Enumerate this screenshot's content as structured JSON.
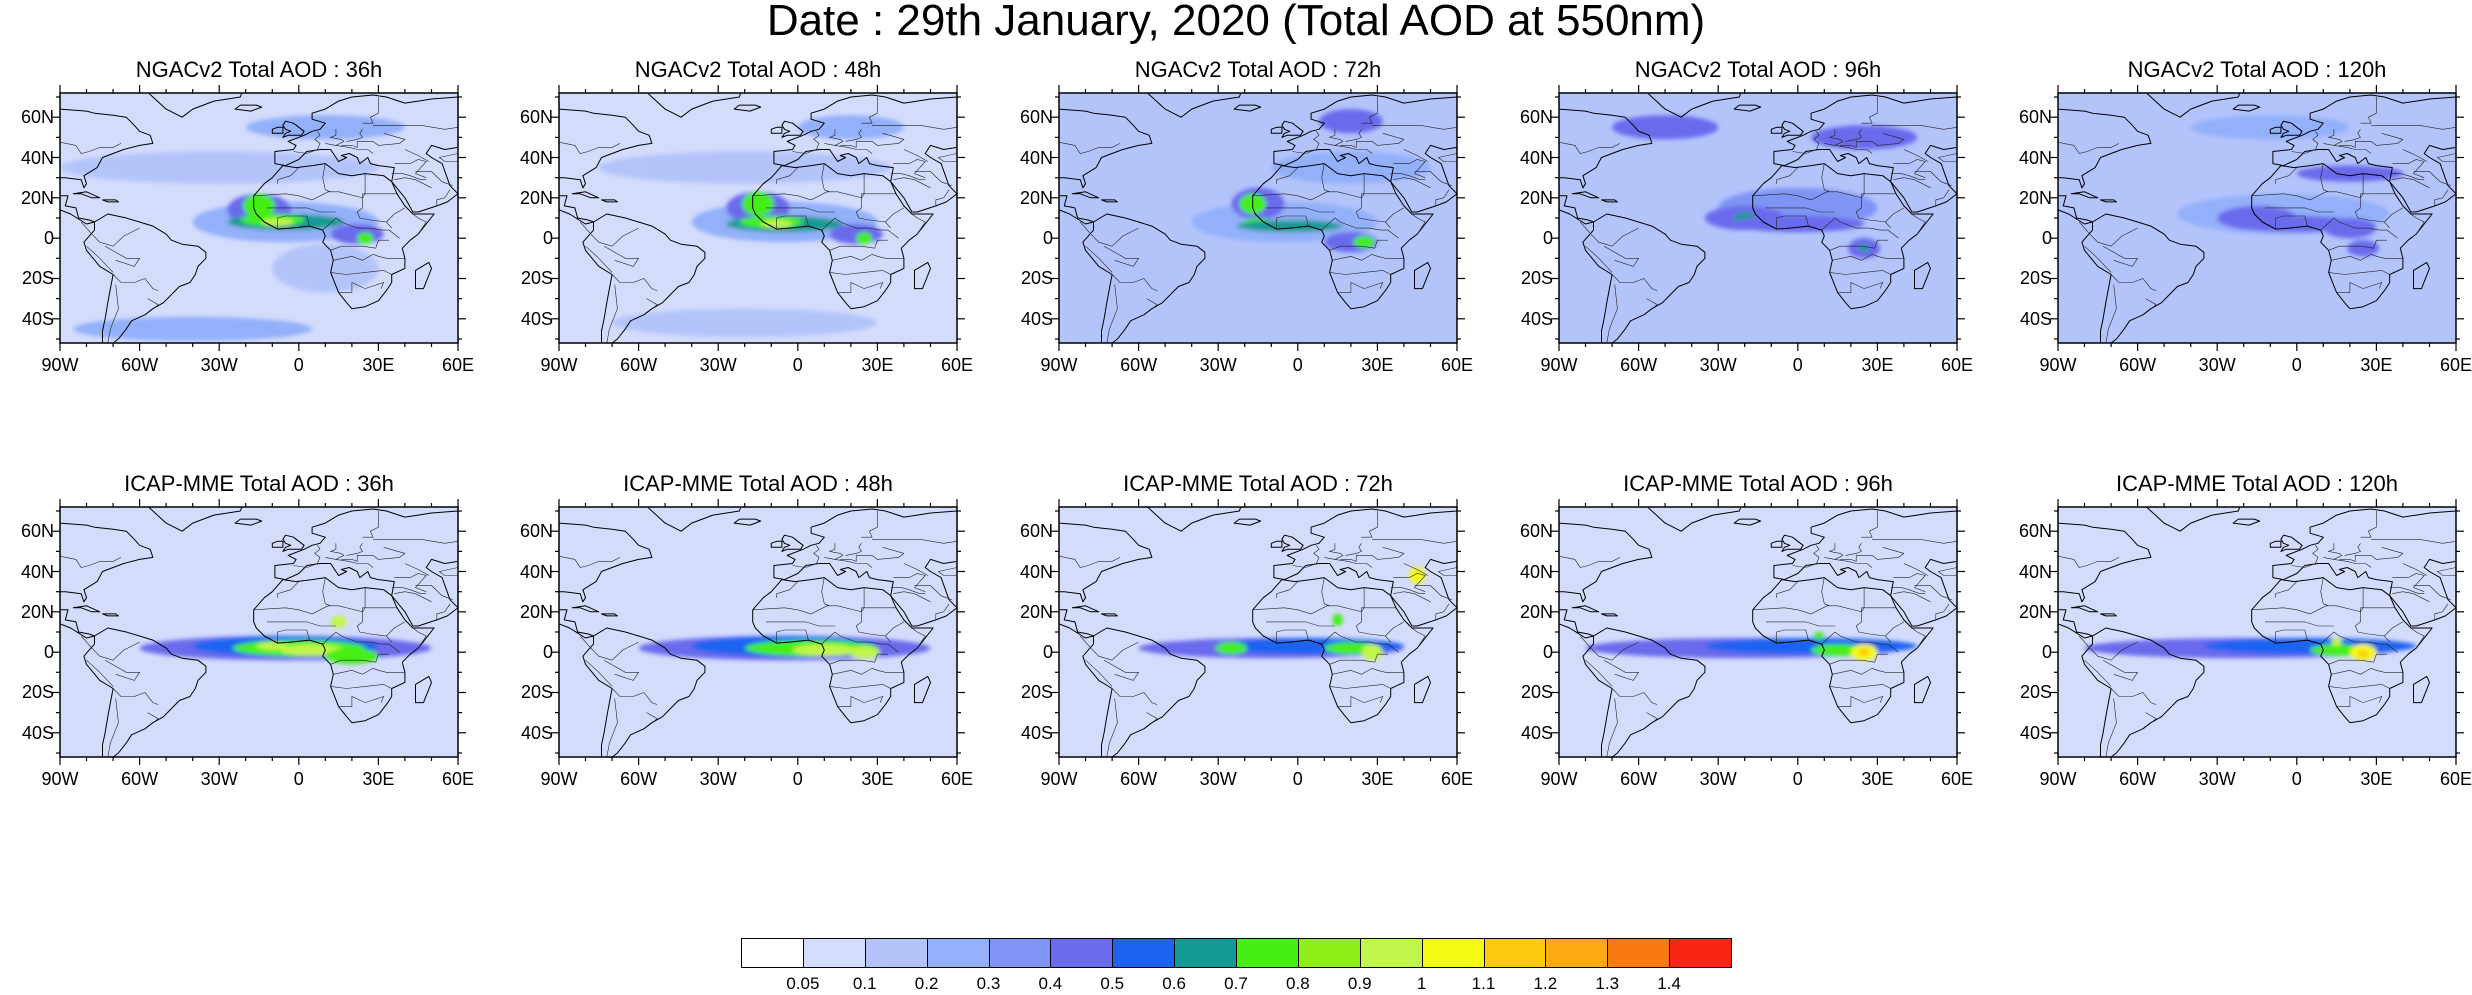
{
  "title": "Date : 29th January, 2020 (Total AOD at 550nm)",
  "axis_ticks": {
    "lat": [
      "60N",
      "40N",
      "20N",
      "0",
      "20S",
      "40S"
    ],
    "lon": [
      "90W",
      "60W",
      "30W",
      "0",
      "30E",
      "60E"
    ]
  },
  "panels": [
    {
      "model": "NGACv2",
      "title": "NGACv2 Total AOD : 36h"
    },
    {
      "model": "NGACv2",
      "title": "NGACv2 Total AOD : 48h"
    },
    {
      "model": "NGACv2",
      "title": "NGACv2 Total AOD : 72h"
    },
    {
      "model": "NGACv2",
      "title": "NGACv2 Total AOD : 96h"
    },
    {
      "model": "NGACv2",
      "title": "NGACv2 Total AOD : 120h"
    },
    {
      "model": "ICAP-MME",
      "title": "ICAP-MME Total AOD : 36h"
    },
    {
      "model": "ICAP-MME",
      "title": "ICAP-MME Total AOD : 48h"
    },
    {
      "model": "ICAP-MME",
      "title": "ICAP-MME Total AOD : 72h"
    },
    {
      "model": "ICAP-MME",
      "title": "ICAP-MME Total AOD : 96h"
    },
    {
      "model": "ICAP-MME",
      "title": "ICAP-MME Total AOD : 120h"
    }
  ],
  "colorbar": {
    "labels": [
      "0.05",
      "0.1",
      "0.2",
      "0.3",
      "0.4",
      "0.5",
      "0.6",
      "0.7",
      "0.8",
      "0.9",
      "1",
      "1.1",
      "1.2",
      "1.3",
      "1.4"
    ],
    "colors": [
      "#ffffff",
      "#d4dcfc",
      "#b3c4fb",
      "#93b0fa",
      "#7f95f5",
      "#6a6bed",
      "#1c63f1",
      "#129b94",
      "#45ef13",
      "#8eef19",
      "#c1f64a",
      "#f4fa12",
      "#fcc90d",
      "#fca913",
      "#f87a11",
      "#fa2615"
    ]
  }
}
